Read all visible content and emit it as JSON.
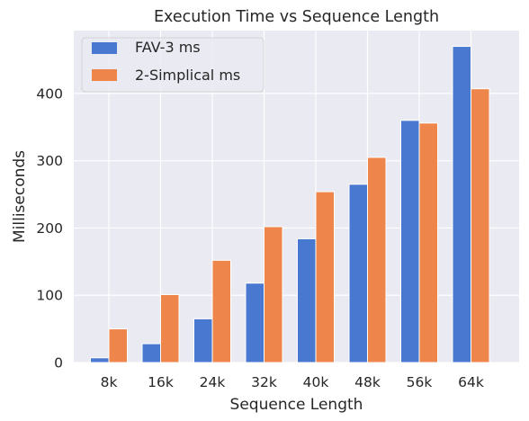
{
  "chart_data": {
    "type": "bar",
    "title": "Execution Time vs Sequence Length",
    "xlabel": "Sequence Length",
    "ylabel": "Milliseconds",
    "categories": [
      "8k",
      "16k",
      "24k",
      "32k",
      "40k",
      "48k",
      "56k",
      "64k"
    ],
    "series": [
      {
        "name": "FAV-3 ms",
        "color": "#4878d0",
        "values": [
          7,
          28,
          65,
          118,
          184,
          265,
          360,
          470
        ]
      },
      {
        "name": "2-Simplical ms",
        "color": "#ee854a",
        "values": [
          50,
          101,
          152,
          202,
          254,
          305,
          356,
          407
        ]
      }
    ],
    "ylim": [
      0,
      493.5
    ],
    "yticks": [
      0,
      100,
      200,
      300,
      400
    ],
    "grid": true,
    "legend": "top-left",
    "colors": {
      "background": "#eaeaf2",
      "grid": "#ffffff"
    }
  }
}
